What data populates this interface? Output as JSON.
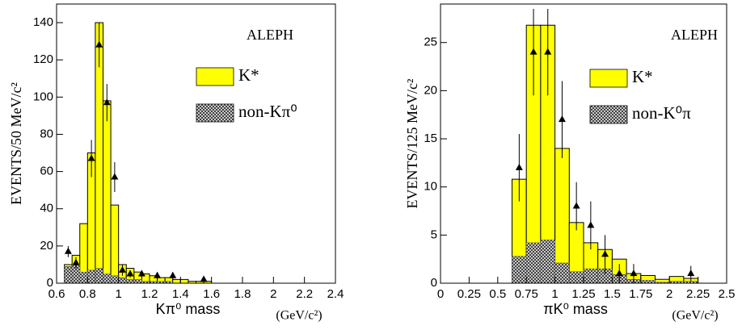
{
  "chart_data": [
    {
      "type": "histogram",
      "ylabel": "EVENTS/50 MeV/c²",
      "xlabel": "Kπ⁰ mass",
      "xunit": "(GeV/c²)",
      "annotation": "ALEPH",
      "legend": "upper right",
      "bins": [
        0.65,
        0.7,
        0.75,
        0.8,
        0.85,
        0.9,
        0.95,
        1.0,
        1.05,
        1.1,
        1.15,
        1.2,
        1.25,
        1.3,
        1.35,
        1.4,
        1.45,
        1.5,
        1.55,
        1.6
      ],
      "series": [
        {
          "name": "K*",
          "color": "#ffff00",
          "values": [
            10,
            15,
            32,
            70,
            140,
            98,
            42,
            10,
            8,
            6,
            5,
            4,
            3,
            3,
            2,
            2,
            1,
            1,
            1
          ]
        },
        {
          "name": "non-Kπ⁰",
          "color": "#555555",
          "values": [
            9,
            10,
            6,
            7,
            8,
            5,
            4,
            3,
            2,
            2,
            1,
            1,
            1,
            1,
            0,
            0,
            0,
            0,
            0
          ]
        }
      ],
      "data": {
        "x": [
          0.675,
          0.725,
          0.825,
          0.875,
          0.925,
          0.975,
          1.025,
          1.075,
          1.15,
          1.25,
          1.35,
          1.55
        ],
        "values": [
          17,
          11,
          67,
          128,
          97,
          57,
          7,
          5,
          5,
          4,
          4,
          2
        ],
        "errors": [
          3,
          3,
          10,
          12,
          10,
          8,
          3,
          2,
          2,
          2,
          2,
          1
        ]
      },
      "xlim": [
        0.6,
        2.4
      ],
      "xticks": [
        0.6,
        0.8,
        1,
        1.2,
        1.4,
        1.6,
        1.8,
        2,
        2.2,
        2.4
      ],
      "ylim": [
        0,
        150
      ],
      "yticks": [
        0,
        20,
        40,
        60,
        80,
        100,
        120,
        140
      ]
    },
    {
      "type": "histogram",
      "ylabel": "EVENTS/125 MeV/c²",
      "xlabel": "πK⁰ mass",
      "xunit": "(GeV/c²)",
      "annotation": "ALEPH",
      "legend": "upper right",
      "bins": [
        0.625,
        0.75,
        0.875,
        1.0,
        1.125,
        1.25,
        1.375,
        1.5,
        1.625,
        1.75,
        1.875,
        2.0,
        2.125,
        2.25
      ],
      "series": [
        {
          "name": "K*",
          "color": "#ffff00",
          "values": [
            10.8,
            26.8,
            26.8,
            14,
            6.3,
            4.2,
            3.5,
            2.5,
            1,
            0.8,
            0.4,
            0.7,
            0.5
          ]
        },
        {
          "name": "non-K⁰π",
          "color": "#555555",
          "values": [
            2.8,
            4.2,
            4.5,
            2.1,
            1.2,
            1.5,
            1.5,
            0.9,
            0.4,
            0.3,
            0.1,
            0.2,
            0.2
          ]
        }
      ],
      "data": {
        "x": [
          0.6875,
          0.8125,
          0.9375,
          1.0625,
          1.1875,
          1.3125,
          1.4375,
          1.5625,
          1.6875,
          2.1875
        ],
        "values": [
          12,
          24,
          24,
          17,
          8,
          6,
          3,
          1,
          1,
          1
        ],
        "errors": [
          3.5,
          4.5,
          4.5,
          4,
          2.5,
          2.5,
          2,
          1,
          1,
          0.8
        ]
      },
      "xlim": [
        0,
        2.5
      ],
      "xticks": [
        0,
        0.25,
        0.5,
        0.75,
        1,
        1.25,
        1.5,
        1.75,
        2,
        2.25,
        2.5
      ],
      "ylim": [
        0,
        29
      ],
      "yticks": [
        0,
        5,
        10,
        15,
        20,
        25
      ]
    }
  ]
}
